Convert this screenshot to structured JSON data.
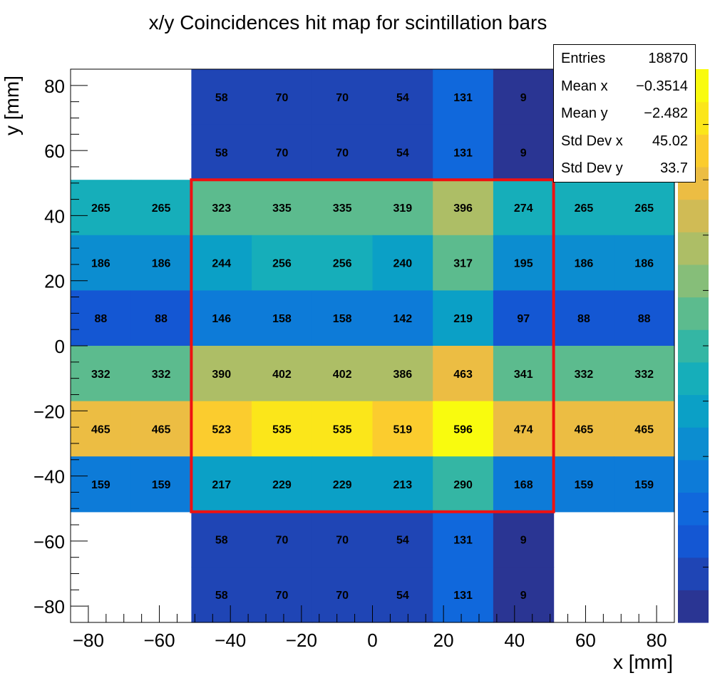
{
  "chart_data": {
    "type": "heatmap",
    "title": "x/y Coincidences hit map for scintillation bars",
    "xlabel": "x [mm]",
    "ylabel": "y [mm]",
    "xlim": [
      -85,
      85
    ],
    "ylim": [
      -85,
      85
    ],
    "x_ticks": [
      "−80",
      "−60",
      "−40",
      "−20",
      "0",
      "20",
      "40",
      "60",
      "80"
    ],
    "y_ticks": [
      "80",
      "60",
      "40",
      "20",
      "0",
      "−20",
      "−40",
      "−60",
      "−80"
    ],
    "x_tick_values": [
      -80,
      -60,
      -40,
      -20,
      0,
      20,
      40,
      60,
      80
    ],
    "y_tick_values": [
      80,
      60,
      40,
      20,
      0,
      -20,
      -40,
      -60,
      -80
    ],
    "x_bin_edges": [
      -85,
      -68,
      -51,
      -34,
      -17,
      0,
      17,
      34,
      51,
      68,
      85
    ],
    "y_bin_edges": [
      85,
      68,
      51,
      34,
      17,
      0,
      -17,
      -34,
      -51,
      -68,
      -85
    ],
    "rows": [
      [
        null,
        null,
        58,
        70,
        70,
        54,
        131,
        9,
        null,
        null
      ],
      [
        null,
        null,
        58,
        70,
        70,
        54,
        131,
        9,
        null,
        null
      ],
      [
        265,
        265,
        323,
        335,
        335,
        319,
        396,
        274,
        265,
        265
      ],
      [
        186,
        186,
        244,
        256,
        256,
        240,
        317,
        195,
        186,
        186
      ],
      [
        88,
        88,
        146,
        158,
        158,
        142,
        219,
        97,
        88,
        88
      ],
      [
        332,
        332,
        390,
        402,
        402,
        386,
        463,
        341,
        332,
        332
      ],
      [
        465,
        465,
        523,
        535,
        535,
        519,
        596,
        474,
        465,
        465
      ],
      [
        159,
        159,
        217,
        229,
        229,
        213,
        290,
        168,
        159,
        159
      ],
      [
        null,
        null,
        58,
        70,
        70,
        54,
        131,
        9,
        null,
        null
      ],
      [
        null,
        null,
        58,
        70,
        70,
        54,
        131,
        9,
        null,
        null
      ]
    ],
    "z_range": [
      0,
      596
    ],
    "highlight_box": {
      "x": [
        -51,
        51
      ],
      "y": [
        -51,
        51
      ],
      "color": "#ee1111"
    },
    "stats": [
      {
        "label": "Entries",
        "value": "18870"
      },
      {
        "label": "Mean x",
        "value": "−0.3514"
      },
      {
        "label": "Mean y",
        "value": "−2.482"
      },
      {
        "label": "Std Dev x",
        "value": "45.02"
      },
      {
        "label": "Std Dev y",
        "value": "33.7"
      }
    ],
    "palette": [
      "#2a3593",
      "#1f45b5",
      "#1457d3",
      "#1068dc",
      "#0d7bd8",
      "#0c8dd0",
      "#0ba0c6",
      "#16aeba",
      "#34b6a4",
      "#5cbb8e",
      "#86be79",
      "#adbe66",
      "#d0bb55",
      "#ecbd43",
      "#fbcc2e",
      "#fbe61a",
      "#f9fb0e"
    ]
  }
}
